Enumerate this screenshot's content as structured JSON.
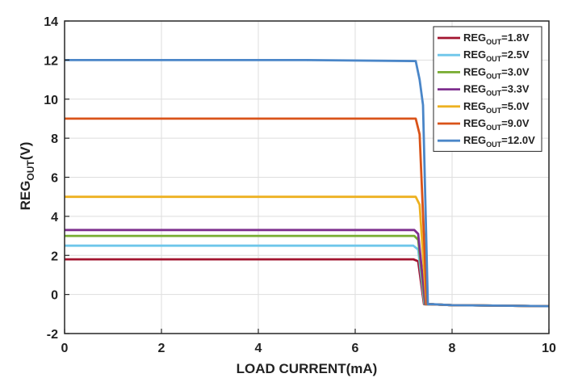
{
  "chart_data": {
    "type": "line",
    "xlabel": "LOAD CURRENT(mA)",
    "ylabel": {
      "base": "REG",
      "sub": "OUT",
      "suffix": "(V)"
    },
    "xlim": [
      0,
      10
    ],
    "ylim": [
      -2,
      14
    ],
    "xticks": [
      "0",
      "2",
      "4",
      "6",
      "8",
      "10"
    ],
    "yticks": [
      "-2",
      "0",
      "2",
      "4",
      "6",
      "8",
      "10",
      "12",
      "14"
    ],
    "grid": true,
    "legend_position": "top-right",
    "series": [
      {
        "name": "=1.8V",
        "label_base": "REG",
        "label_sub": "OUT",
        "label_suffix": "=1.8V",
        "color": "#a2142f",
        "x": [
          0,
          7.2,
          7.3,
          7.42,
          7.55,
          8.0,
          10.0
        ],
        "y": [
          1.8,
          1.8,
          1.7,
          -0.5,
          -0.5,
          -0.55,
          -0.6
        ]
      },
      {
        "name": "=2.5V",
        "label_base": "REG",
        "label_sub": "OUT",
        "label_suffix": "=2.5V",
        "color": "#6ec6ea",
        "x": [
          0,
          7.2,
          7.3,
          7.43,
          7.55,
          8.0,
          10.0
        ],
        "y": [
          2.5,
          2.5,
          2.3,
          -0.5,
          -0.5,
          -0.55,
          -0.6
        ]
      },
      {
        "name": "=3.0V",
        "label_base": "REG",
        "label_sub": "OUT",
        "label_suffix": "=3.0V",
        "color": "#77ac30",
        "x": [
          0,
          7.22,
          7.3,
          7.44,
          7.55,
          8.0,
          10.0
        ],
        "y": [
          3.0,
          3.0,
          2.8,
          -0.5,
          -0.5,
          -0.55,
          -0.6
        ]
      },
      {
        "name": "=3.3V",
        "label_base": "REG",
        "label_sub": "OUT",
        "label_suffix": "=3.3V",
        "color": "#7e2f8e",
        "x": [
          0,
          7.22,
          7.3,
          7.45,
          7.55,
          8.0,
          10.0
        ],
        "y": [
          3.3,
          3.3,
          3.1,
          -0.5,
          -0.5,
          -0.55,
          -0.6
        ]
      },
      {
        "name": "=5.0V",
        "label_base": "REG",
        "label_sub": "OUT",
        "label_suffix": "=5.0V",
        "color": "#edb120",
        "x": [
          0,
          7.25,
          7.33,
          7.47,
          7.55,
          8.0,
          10.0
        ],
        "y": [
          5.0,
          5.0,
          4.6,
          -0.5,
          -0.5,
          -0.55,
          -0.6
        ]
      },
      {
        "name": "=9.0V",
        "label_base": "REG",
        "label_sub": "OUT",
        "label_suffix": "=9.0V",
        "color": "#d95319",
        "x": [
          0,
          7.25,
          7.33,
          7.48,
          7.55,
          8.0,
          10.0
        ],
        "y": [
          9.0,
          9.0,
          8.2,
          -0.5,
          -0.5,
          -0.55,
          -0.6
        ]
      },
      {
        "name": "=12.0V",
        "label_base": "REG",
        "label_sub": "OUT",
        "label_suffix": "=12.0V",
        "color": "#4a86c8",
        "x": [
          0,
          5.0,
          7.25,
          7.33,
          7.4,
          7.5,
          7.6,
          8.0,
          10.0
        ],
        "y": [
          12.0,
          12.0,
          11.95,
          11.0,
          9.7,
          -0.5,
          -0.5,
          -0.55,
          -0.6
        ]
      }
    ]
  }
}
